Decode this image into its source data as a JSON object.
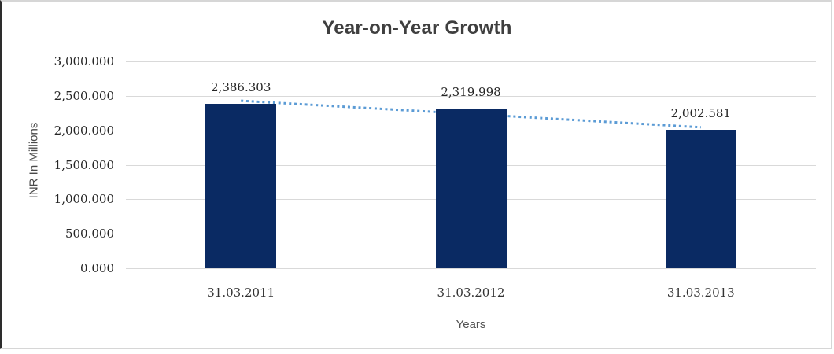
{
  "chart_data": {
    "type": "bar",
    "title": "Year-on-Year Growth",
    "xlabel": "Years",
    "ylabel": "INR In Millions",
    "categories": [
      "31.03.2011",
      "31.03.2012",
      "31.03.2013"
    ],
    "values": [
      2386.303,
      2319.998,
      2002.581
    ],
    "value_labels": [
      "2,386.303",
      "2,319.998",
      "2,002.581"
    ],
    "ylim": [
      0,
      3000
    ],
    "ytick_step": 500,
    "ytick_labels": [
      "3,000.000",
      "2,500.000",
      "2,000.000",
      "1,500.000",
      "1,000.000",
      "500.000",
      "0.000"
    ],
    "grid": true,
    "legend": "none",
    "bar_color": "#0a2a63",
    "gridline_color": "#d9d9d9",
    "trendline": {
      "style": "dotted",
      "color": "#5b9bd5",
      "start_value": 2428.2,
      "end_value": 2044.4
    }
  }
}
